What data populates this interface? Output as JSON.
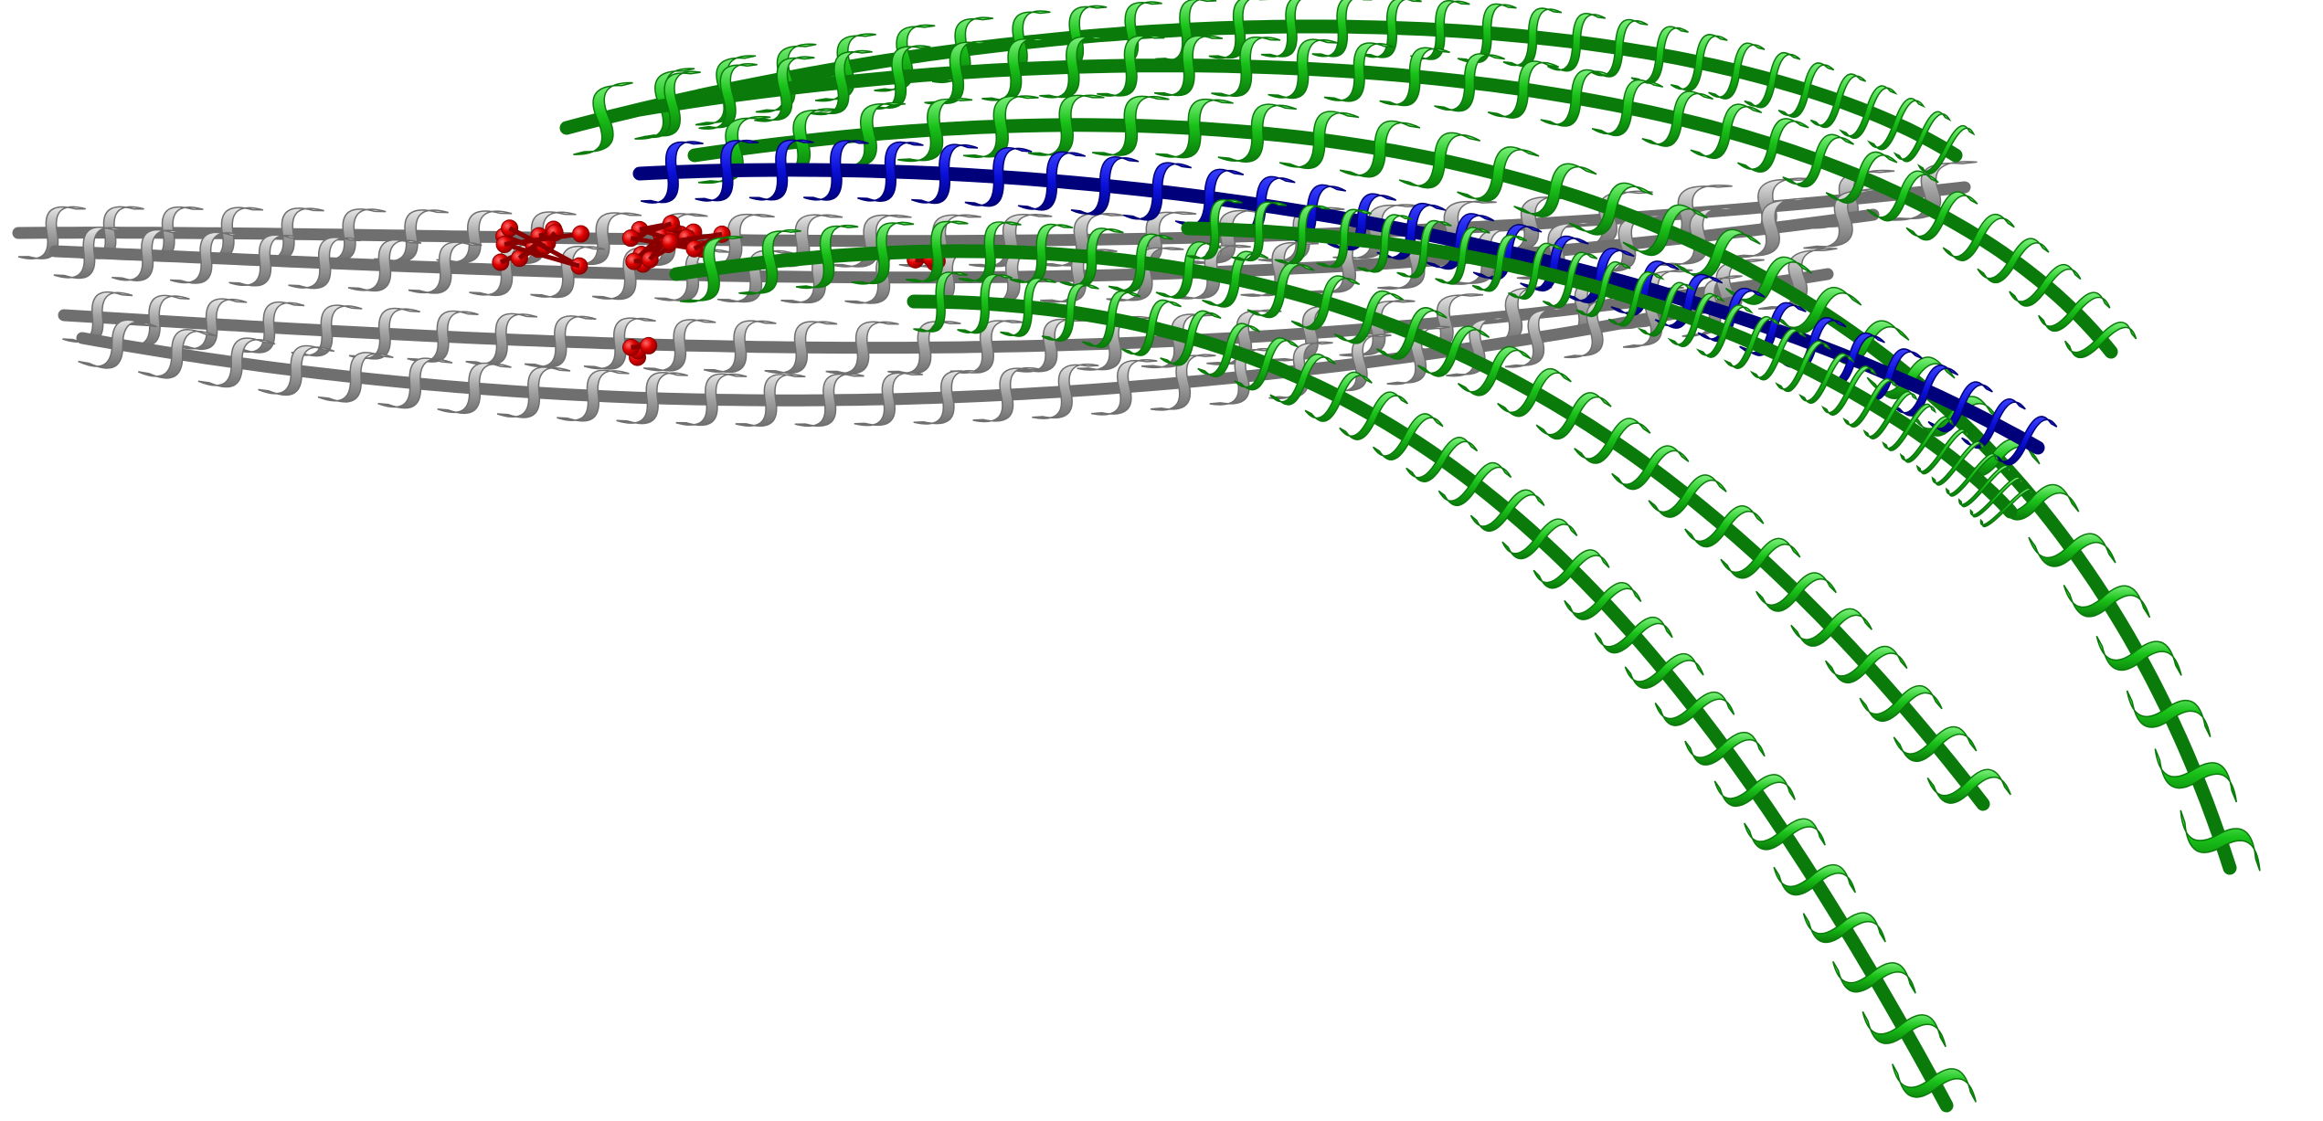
{
  "image": {
    "description_visible_text": "",
    "colors": {
      "background": "#ffffff",
      "grey_helix": "#a6a6a6",
      "grey_helix_dark": "#6f6f6f",
      "grey_helix_light": "#e6e6e6",
      "green_helix": "#19c219",
      "green_helix_dark": "#0a7a0a",
      "green_helix_light": "#7df07d",
      "blue_helix": "#0a10d8",
      "blue_helix_dark": "#00007a",
      "ligand_red": "#e00000",
      "ligand_red_dark": "#8a0000"
    },
    "representation": "cartoon-ribbon",
    "helix_groups": [
      {
        "name": "grey-helix-bundle",
        "count": 4
      },
      {
        "name": "green-helix-bundle",
        "count": 6
      },
      {
        "name": "blue-helix",
        "count": 1
      }
    ],
    "ligands": {
      "name": "red-ball-and-stick-ligands",
      "clusters": 4
    }
  }
}
